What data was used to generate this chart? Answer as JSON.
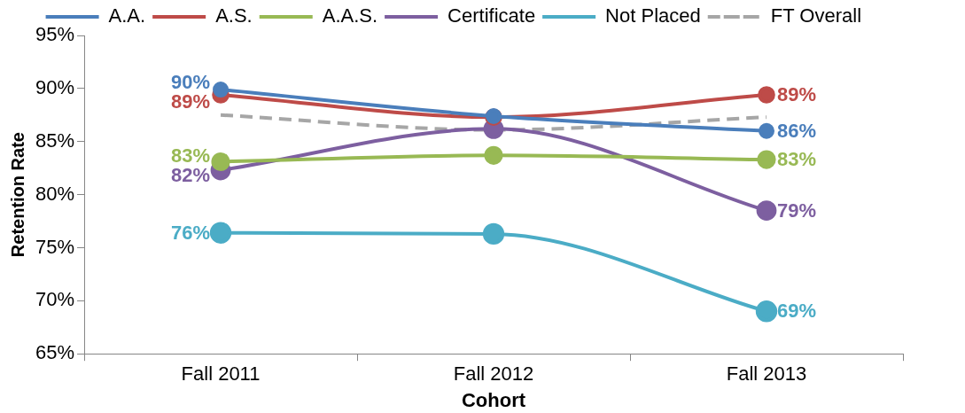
{
  "chart_data": {
    "type": "line",
    "xlabel": "Cohort",
    "ylabel": "Retention Rate",
    "categories": [
      "Fall 2011",
      "Fall 2012",
      "Fall 2013"
    ],
    "ylim": [
      65,
      95
    ],
    "yticks": [
      {
        "value": 65,
        "label": "65%"
      },
      {
        "value": 70,
        "label": "70%"
      },
      {
        "value": 75,
        "label": "75%"
      },
      {
        "value": 80,
        "label": "80%"
      },
      {
        "value": 85,
        "label": "85%"
      },
      {
        "value": 90,
        "label": "90%"
      },
      {
        "value": 95,
        "label": "95%"
      }
    ],
    "grid": false,
    "legend": "top",
    "marker": "circle",
    "line_style": "solid",
    "series": [
      {
        "name": "A.A.",
        "color": "#4a7ebb",
        "values": [
          89.9,
          87.4,
          86.0
        ],
        "value_labels": [
          "90%",
          null,
          "86%"
        ]
      },
      {
        "name": "A.S.",
        "color": "#be4b48",
        "values": [
          89.4,
          87.3,
          89.4
        ],
        "value_labels": [
          "89%",
          null,
          "89%"
        ]
      },
      {
        "name": "A.A.S.",
        "color": "#98b954",
        "values": [
          83.1,
          83.7,
          83.3
        ],
        "value_labels": [
          "83%",
          null,
          "83%"
        ]
      },
      {
        "name": "Certificate",
        "color": "#7d5fa0",
        "values": [
          82.3,
          86.2,
          78.5
        ],
        "value_labels": [
          "82%",
          null,
          "79%"
        ]
      },
      {
        "name": "Not Placed",
        "color": "#4bacc6",
        "values": [
          76.4,
          76.3,
          69.0
        ],
        "value_labels": [
          "76%",
          null,
          "69%"
        ]
      },
      {
        "name": "FT Overall",
        "color": "#a6a6a6",
        "values": [
          87.5,
          86.1,
          87.3
        ],
        "marker": "none",
        "line_style": "dashed"
      }
    ]
  }
}
